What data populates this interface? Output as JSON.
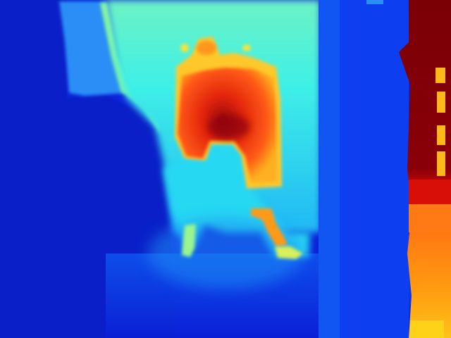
{
  "image": {
    "kind": "depth-map",
    "colormap": "jet",
    "palette": {
      "far": "#0b1fd6",
      "mid_blue": "#0f56f0",
      "sky": "#2f9cf8",
      "cyan": "#22e3f2",
      "aqua": "#55f0d8",
      "green": "#8cf59a",
      "yellow": "#f4e43a",
      "orange": "#ff8a1a",
      "red": "#f03a12",
      "dark_red": "#b80d0a",
      "maroon": "#7a0006"
    }
  }
}
